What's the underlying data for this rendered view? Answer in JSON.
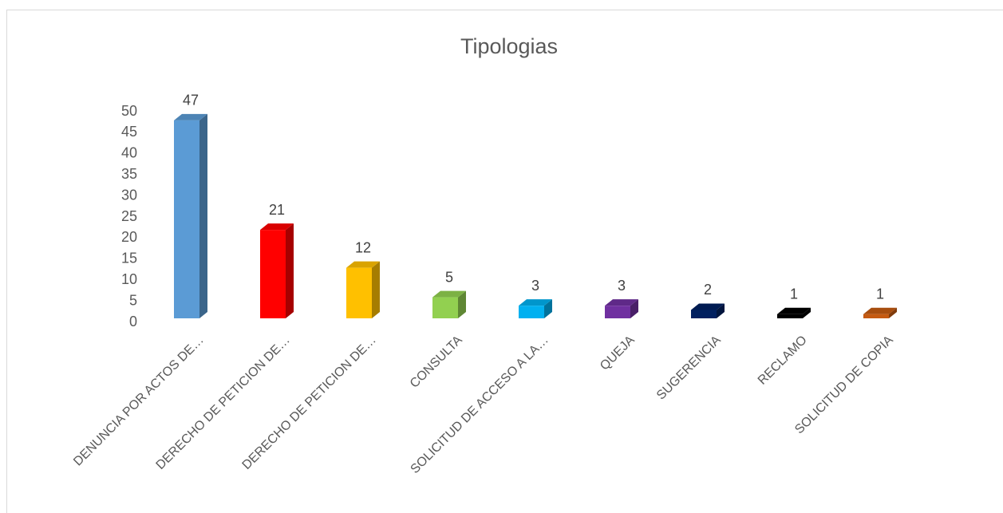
{
  "chart_data": {
    "type": "bar3d",
    "title": "Tipologias",
    "categories": [
      "DENUNCIA POR ACTOS DE…",
      "DERECHO DE PETICION DE…",
      "DERECHO DE PETICION DE…",
      "CONSULTA",
      "SOLICITUD DE ACCESO A LA…",
      "QUEJA",
      "SUGERENCIA",
      "RECLAMO",
      "SOLICITUD DE COPIA"
    ],
    "values": [
      47,
      21,
      12,
      5,
      3,
      3,
      2,
      1,
      1
    ],
    "colors": [
      "#5b9bd5",
      "#ff0000",
      "#ffc000",
      "#92d050",
      "#00b0f0",
      "#7030a0",
      "#002060",
      "#000000",
      "#c55a11"
    ],
    "ylim": [
      0,
      50
    ],
    "yticks": [
      0,
      5,
      10,
      15,
      20,
      25,
      30,
      35,
      40,
      45,
      50
    ],
    "grid": false
  }
}
